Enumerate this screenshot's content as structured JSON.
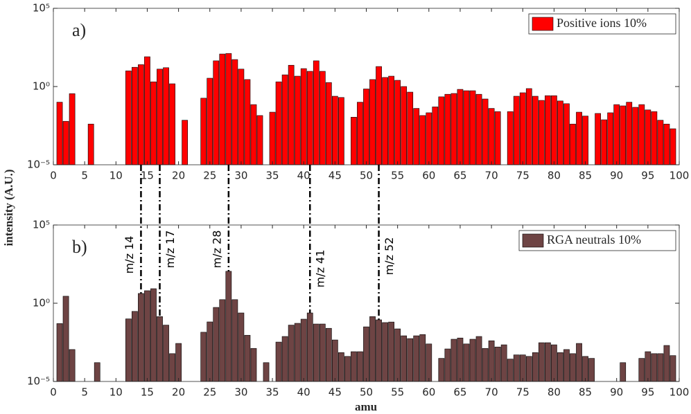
{
  "chart_data": [
    {
      "type": "bar",
      "panel": "a)",
      "ylabel": "intensity (A.U.)",
      "log_y": true,
      "x": [
        1,
        2,
        3,
        6,
        12,
        13,
        14,
        15,
        16,
        17,
        18,
        19,
        21,
        24,
        25,
        26,
        27,
        28,
        29,
        30,
        31,
        32,
        33,
        35,
        36,
        37,
        38,
        39,
        40,
        41,
        42,
        43,
        44,
        45,
        46,
        48,
        49,
        50,
        51,
        52,
        53,
        54,
        55,
        56,
        57,
        58,
        59,
        60,
        61,
        62,
        63,
        64,
        65,
        66,
        67,
        68,
        69,
        70,
        71,
        73,
        74,
        75,
        76,
        77,
        78,
        79,
        80,
        81,
        82,
        83,
        84,
        85,
        87,
        88,
        89,
        90,
        91,
        92,
        93,
        94,
        95,
        96,
        97,
        98,
        99
      ],
      "series": [
        {
          "name": "Positive ions 10%",
          "color": "#ff0000",
          "values": [
            0.1,
            0.006,
            0.35,
            0.004,
            10,
            17,
            25,
            80,
            2,
            13,
            16,
            1.5,
            0.007,
            0.18,
            3.4,
            44,
            120,
            130,
            53,
            13,
            2.8,
            0.07,
            0.014,
            0.023,
            2,
            5.6,
            23,
            4.6,
            14,
            9.4,
            44,
            9.4,
            1.8,
            0.24,
            0.2,
            0.011,
            0.1,
            0.7,
            2.8,
            19,
            3.8,
            4.6,
            2.5,
            1,
            0.44,
            0.04,
            0.014,
            0.021,
            0.05,
            0.22,
            0.32,
            0.36,
            0.66,
            0.54,
            0.54,
            0.32,
            0.16,
            0.04,
            0.025,
            0.025,
            0.24,
            0.4,
            0.74,
            0.24,
            0.13,
            0.26,
            0.26,
            0.12,
            0.08,
            0.004,
            0.023,
            0.013,
            0.019,
            0.0075,
            0.021,
            0.07,
            0.058,
            0.1,
            0.047,
            0.07,
            0.032,
            0.025,
            0.007,
            0.004,
            0.002
          ]
        }
      ],
      "xlim": [
        0,
        100
      ],
      "xticks": [
        0,
        5,
        10,
        15,
        20,
        25,
        30,
        35,
        40,
        45,
        50,
        55,
        60,
        65,
        70,
        75,
        80,
        85,
        90,
        95,
        100
      ],
      "ylim": [
        1e-05,
        100000
      ],
      "yticks": [
        {
          "value": 1e-05,
          "label": "10⁻⁵"
        },
        {
          "value": 1,
          "label": "10⁰"
        },
        {
          "value": 100000,
          "label": "10⁵"
        }
      ],
      "legend": "upper right"
    },
    {
      "type": "bar",
      "panel": "b)",
      "xlabel": "amu",
      "log_y": true,
      "x": [
        1,
        2,
        3,
        7,
        12,
        13,
        14,
        15,
        16,
        17,
        18,
        19,
        20,
        24,
        25,
        26,
        27,
        28,
        29,
        30,
        31,
        32,
        34,
        36,
        37,
        38,
        39,
        40,
        41,
        42,
        43,
        44,
        45,
        46,
        47,
        48,
        49,
        50,
        51,
        52,
        53,
        54,
        55,
        56,
        57,
        58,
        59,
        60,
        62,
        63,
        64,
        65,
        66,
        67,
        68,
        69,
        70,
        71,
        72,
        73,
        74,
        75,
        76,
        77,
        78,
        79,
        80,
        81,
        82,
        83,
        84,
        85,
        86,
        91,
        94,
        95,
        96,
        97,
        98,
        99
      ],
      "series": [
        {
          "name": "RGA neutrals 10%",
          "color": "#6e4444",
          "values": [
            0.05,
            2.8,
            0.0011,
            0.00016,
            0.1,
            0.3,
            4.2,
            6.3,
            8.5,
            0.14,
            0.04,
            0.0006,
            0.0027,
            0.014,
            0.064,
            0.54,
            1.7,
            110,
            1.7,
            0.24,
            0.009,
            0.0013,
            0.00016,
            0.0033,
            0.0075,
            0.04,
            0.052,
            0.096,
            0.24,
            0.047,
            0.047,
            0.025,
            0.0045,
            0.0007,
            0.0004,
            0.0008,
            0.0008,
            0.031,
            0.14,
            0.087,
            0.058,
            0.063,
            0.023,
            0.0083,
            0.0055,
            0.0083,
            0.01,
            0.0025,
            0.0003,
            0.0012,
            0.005,
            0.006,
            0.0025,
            0.005,
            0.0075,
            0.0013,
            0.004,
            0.0016,
            0.0022,
            0.00027,
            0.0005,
            0.0005,
            0.0004,
            0.0007,
            0.003,
            0.003,
            0.0022,
            0.0007,
            0.0011,
            0.0006,
            0.0027,
            0.0004,
            0.0003,
            0.00016,
            0.0003,
            0.0008,
            0.0006,
            0.0006,
            0.002,
            0.00045
          ]
        }
      ],
      "xlim": [
        0,
        100
      ],
      "xticks": [
        0,
        5,
        10,
        15,
        20,
        25,
        30,
        35,
        40,
        45,
        50,
        55,
        60,
        65,
        70,
        75,
        80,
        85,
        90,
        95,
        100
      ],
      "ylim": [
        1e-05,
        100000
      ],
      "yticks": [
        {
          "value": 1e-05,
          "label": "10⁻⁵"
        },
        {
          "value": 1,
          "label": "10⁰"
        },
        {
          "value": 100000,
          "label": "10⁵"
        }
      ],
      "legend": "upper right",
      "annotations": [
        {
          "text": "m/z 14",
          "x": 14
        },
        {
          "text": "m/z 17",
          "x": 17
        },
        {
          "text": "m/z 28",
          "x": 28
        },
        {
          "text": "m/z 41",
          "x": 41
        },
        {
          "text": "m/z 52",
          "x": 52
        }
      ]
    }
  ]
}
